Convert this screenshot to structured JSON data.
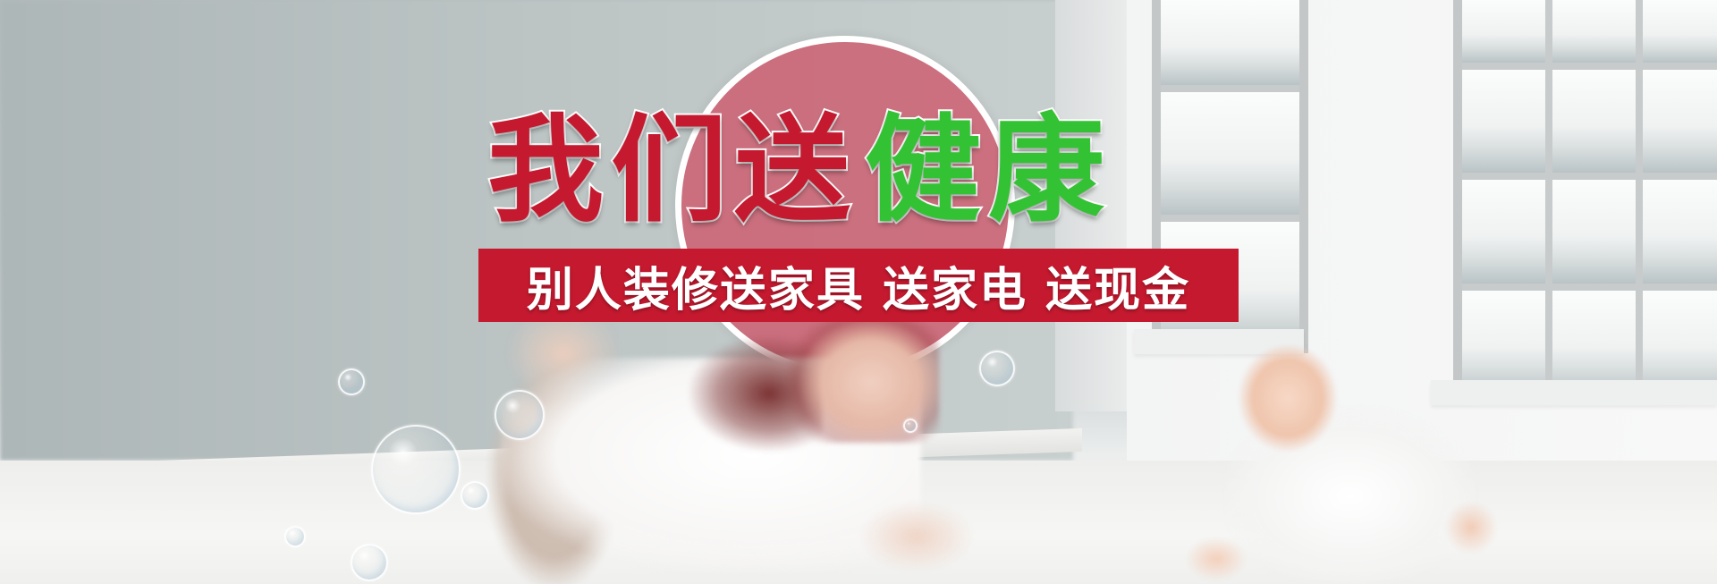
{
  "banner": {
    "headline_part1": "我们送",
    "headline_part2": "健康",
    "subtitle": "别人装修送家具 送家电 送现金"
  },
  "colors": {
    "accent_red": "#c5192f",
    "accent_green": "#34c235",
    "circle_pink": "#cd5c6e"
  },
  "icons": [
    "bubble-icon"
  ]
}
